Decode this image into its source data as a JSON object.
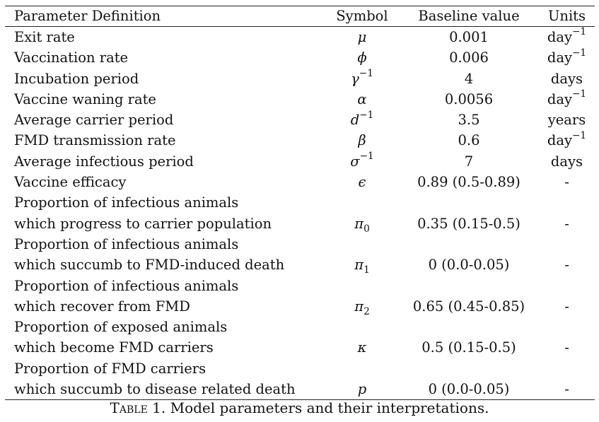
{
  "table": {
    "headers": {
      "definition": "Parameter Definition",
      "symbol": "Symbol",
      "baseline": "Baseline value",
      "units": "Units"
    },
    "rows": [
      {
        "definition": [
          "Exit rate"
        ],
        "symbol": "μ",
        "symbol_sup": "",
        "symbol_sub": "",
        "baseline": "0.001",
        "unit": "day",
        "unit_sup": "−1"
      },
      {
        "definition": [
          "Vaccination rate"
        ],
        "symbol": "ϕ",
        "symbol_sup": "",
        "symbol_sub": "",
        "baseline": "0.006",
        "unit": "day",
        "unit_sup": "−1"
      },
      {
        "definition": [
          "Incubation period"
        ],
        "symbol": "γ",
        "symbol_sup": "−1",
        "symbol_sub": "",
        "baseline": "4",
        "unit": "days",
        "unit_sup": ""
      },
      {
        "definition": [
          "Vaccine waning rate"
        ],
        "symbol": "α",
        "symbol_sup": "",
        "symbol_sub": "",
        "baseline": "0.0056",
        "unit": "day",
        "unit_sup": "−1"
      },
      {
        "definition": [
          "Average carrier period"
        ],
        "symbol": "d",
        "symbol_sup": "−1",
        "symbol_sub": "",
        "baseline": "3.5",
        "unit": "years",
        "unit_sup": ""
      },
      {
        "definition": [
          "FMD transmission rate"
        ],
        "symbol": "β",
        "symbol_sup": "",
        "symbol_sub": "",
        "baseline": "0.6",
        "unit": "day",
        "unit_sup": "−1"
      },
      {
        "definition": [
          "Average infectious period"
        ],
        "symbol": "σ",
        "symbol_sup": "−1",
        "symbol_sub": "",
        "baseline": "7",
        "unit": "days",
        "unit_sup": ""
      },
      {
        "definition": [
          "Vaccine efficacy"
        ],
        "symbol": "ϵ",
        "symbol_sup": "",
        "symbol_sub": "",
        "baseline": "0.89 (0.5-0.89)",
        "unit": "-",
        "unit_sup": ""
      },
      {
        "definition": [
          "Proportion of infectious animals",
          "which progress to carrier population"
        ],
        "symbol": "π",
        "symbol_sup": "",
        "symbol_sub": "0",
        "baseline": "0.35 (0.15-0.5)",
        "unit": "-",
        "unit_sup": ""
      },
      {
        "definition": [
          "Proportion of infectious animals",
          "which succumb to FMD-induced death"
        ],
        "symbol": "π",
        "symbol_sup": "",
        "symbol_sub": "1",
        "baseline": "0 (0.0-0.05)",
        "unit": "-",
        "unit_sup": ""
      },
      {
        "definition": [
          "Proportion of infectious animals",
          "which recover from FMD"
        ],
        "symbol": "π",
        "symbol_sup": "",
        "symbol_sub": "2",
        "baseline": "0.65 (0.45-0.85)",
        "unit": "-",
        "unit_sup": ""
      },
      {
        "definition": [
          "Proportion of exposed animals",
          "which become FMD carriers"
        ],
        "symbol": "κ",
        "symbol_sup": "",
        "symbol_sub": "",
        "baseline": "0.5 (0.15-0.5)",
        "unit": "-",
        "unit_sup": ""
      },
      {
        "definition": [
          "Proportion of FMD carriers",
          "which succumb to disease related death"
        ],
        "symbol": "p",
        "symbol_sup": "",
        "symbol_sub": "",
        "baseline": "0 (0.0-0.05)",
        "unit": "-",
        "unit_sup": ""
      }
    ]
  },
  "caption": {
    "label": "Table 1.",
    "text": "Model parameters and their interpretations."
  }
}
